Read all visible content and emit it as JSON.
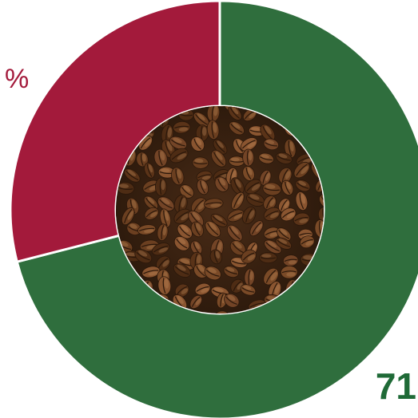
{
  "chart_data": {
    "type": "pie",
    "style": "donut",
    "categories": [
      "",
      ""
    ],
    "values": [
      71,
      29
    ],
    "colors": [
      "#2f6e3d",
      "#a31a3b"
    ],
    "center_image": "coffee-beans",
    "labels": {
      "green_value": "71",
      "red_unit": "%"
    },
    "label_colors": {
      "green": "#1f6a37",
      "red": "#a31a3b"
    },
    "separator_color": "#ffffff",
    "background_color": "#ffffff"
  }
}
